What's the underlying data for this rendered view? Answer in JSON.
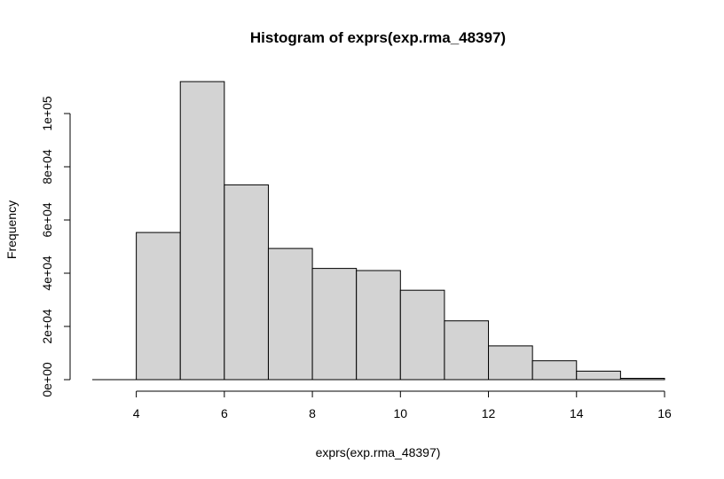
{
  "chart_data": {
    "type": "bar",
    "title": "Histogram of exprs(exp.rma_48397)",
    "xlabel": "exprs(exp.rma_48397)",
    "ylabel": "Frequency",
    "xlim": [
      3,
      16
    ],
    "ylim": [
      0,
      112000
    ],
    "x_ticks": [
      4,
      6,
      8,
      10,
      12,
      14,
      16
    ],
    "x_tick_labels": [
      "4",
      "6",
      "8",
      "10",
      "12",
      "14",
      "16"
    ],
    "y_ticks": [
      0,
      20000,
      40000,
      60000,
      80000,
      100000
    ],
    "y_tick_labels": [
      "0e+00",
      "2e+04",
      "4e+04",
      "6e+04",
      "8e+04",
      "1e+05"
    ],
    "bins": [
      {
        "start": 4,
        "end": 5,
        "value": 55300
      },
      {
        "start": 5,
        "end": 6,
        "value": 112000
      },
      {
        "start": 6,
        "end": 7,
        "value": 73200
      },
      {
        "start": 7,
        "end": 8,
        "value": 49300
      },
      {
        "start": 8,
        "end": 9,
        "value": 41800
      },
      {
        "start": 9,
        "end": 10,
        "value": 41000
      },
      {
        "start": 10,
        "end": 11,
        "value": 33600
      },
      {
        "start": 11,
        "end": 12,
        "value": 22100
      },
      {
        "start": 12,
        "end": 13,
        "value": 12700
      },
      {
        "start": 13,
        "end": 14,
        "value": 7100
      },
      {
        "start": 14,
        "end": 15,
        "value": 3200
      },
      {
        "start": 15,
        "end": 16,
        "value": 500
      }
    ],
    "bar_fill": "#d3d3d3",
    "bar_stroke": "#000000",
    "grid": false,
    "legend": "none"
  }
}
